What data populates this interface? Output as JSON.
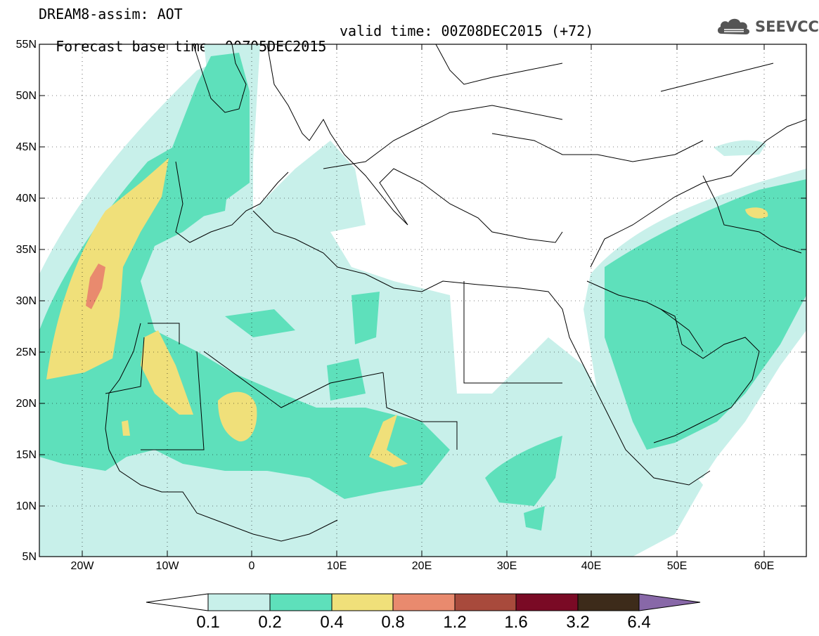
{
  "title": {
    "line1": "DREAM8-assim: AOT",
    "base": "Forecast base time: 00Z05DEC2015",
    "valid": "valid time: 00Z08DEC2015 (+72)"
  },
  "logo": {
    "text": "SEEVCCC",
    "icon": "cloud-icon"
  },
  "map": {
    "lat_ticks": [
      "55N",
      "50N",
      "45N",
      "40N",
      "35N",
      "30N",
      "25N",
      "20N",
      "15N",
      "10N",
      "5N"
    ],
    "lon_ticks": [
      "20W",
      "10W",
      "0",
      "10E",
      "20E",
      "30E",
      "40E",
      "50E",
      "60E"
    ],
    "extent": {
      "lon": [
        -25,
        65
      ],
      "lat": [
        5,
        55
      ]
    }
  },
  "colorbar": {
    "levels": [
      "0.1",
      "0.2",
      "0.4",
      "0.8",
      "1.2",
      "1.6",
      "3.2",
      "6.4"
    ],
    "colors": [
      "#ffffff",
      "#c8f0ea",
      "#5ee0bb",
      "#f0e07a",
      "#e98a6e",
      "#a84a3c",
      "#7a0a25",
      "#3d2b1a",
      "#8868a8"
    ]
  }
}
